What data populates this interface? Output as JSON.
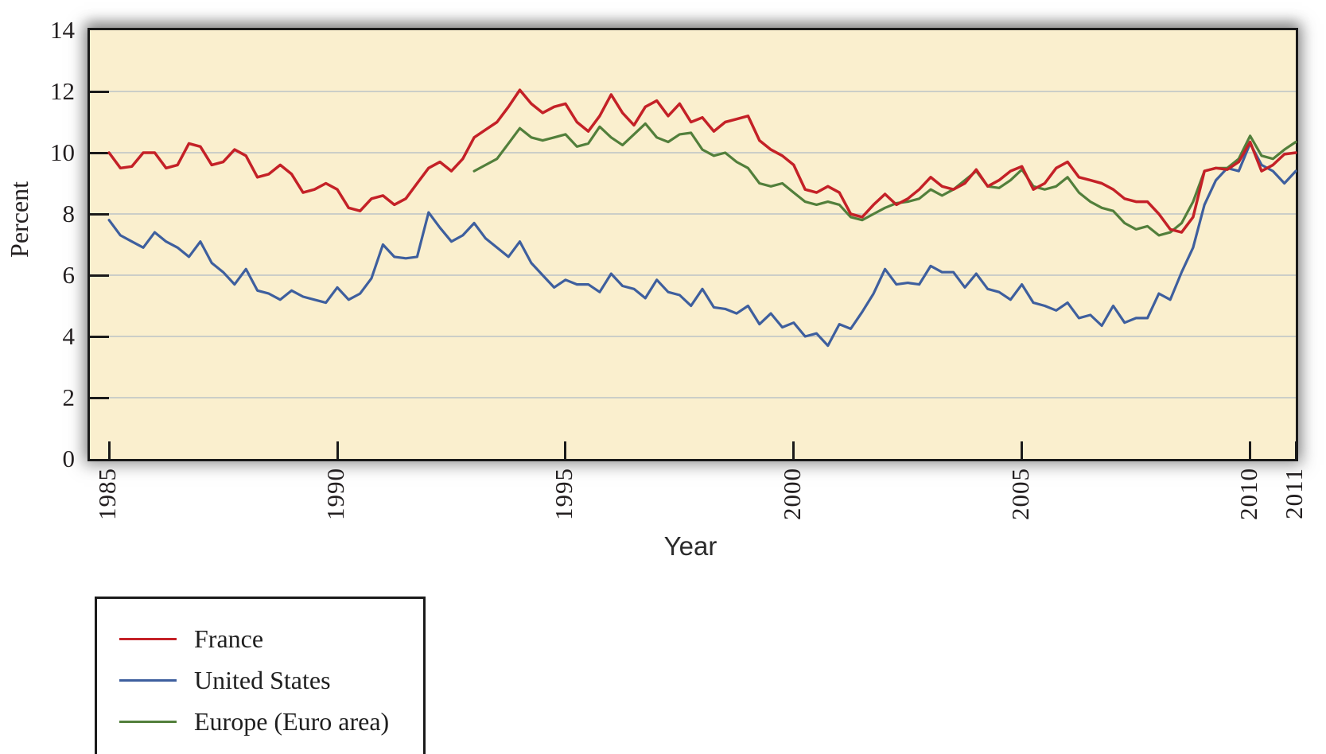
{
  "colors": {
    "plot_background": "#FAEFCE",
    "gridline": "#CBCEC8",
    "axis": "#1A1A1A",
    "text": "#231F20",
    "france": "#C42127",
    "united_states": "#3E5F9E",
    "euro_area": "#527F3B"
  },
  "chart_data": {
    "type": "line",
    "title": "",
    "ylabel": "Percent",
    "xlabel": "Year",
    "ylim": [
      0,
      14
    ],
    "xlim": [
      1984.58,
      2011.0
    ],
    "yticks": [
      0,
      2,
      4,
      6,
      8,
      10,
      12,
      14
    ],
    "xticks": [
      1985,
      1990,
      1995,
      2000,
      2005,
      2010,
      2011
    ],
    "grid": "horizontal",
    "legend_position": "bottom-left",
    "x_unit": "year (quarterly points)",
    "series": [
      {
        "name": "France",
        "color": "#C42127",
        "start": 1985.0,
        "step": 0.25,
        "values": [
          10.0,
          9.5,
          9.55,
          10.0,
          10.0,
          9.5,
          9.6,
          10.3,
          10.2,
          9.6,
          9.7,
          10.1,
          9.9,
          9.2,
          9.3,
          9.6,
          9.3,
          8.7,
          8.8,
          9.0,
          8.8,
          8.2,
          8.1,
          8.5,
          8.6,
          8.3,
          8.5,
          9.0,
          9.5,
          9.7,
          9.4,
          9.8,
          10.5,
          10.75,
          11.0,
          11.5,
          12.05,
          11.6,
          11.3,
          11.5,
          11.6,
          11.0,
          10.7,
          11.2,
          11.9,
          11.3,
          10.9,
          11.5,
          11.7,
          11.2,
          11.6,
          11.0,
          11.15,
          10.7,
          11.0,
          11.1,
          11.2,
          10.4,
          10.1,
          9.9,
          9.6,
          8.8,
          8.7,
          8.9,
          8.7,
          8.0,
          7.9,
          8.3,
          8.65,
          8.3,
          8.5,
          8.8,
          9.2,
          8.9,
          8.8,
          9.0,
          9.45,
          8.9,
          9.1,
          9.4,
          9.55,
          8.8,
          9.0,
          9.5,
          9.7,
          9.2,
          9.1,
          9.0,
          8.8,
          8.5,
          8.4,
          8.4,
          8.0,
          7.5,
          7.4,
          7.9,
          9.4,
          9.5,
          9.45,
          9.7,
          10.35,
          9.4,
          9.6,
          9.95,
          10.0
        ]
      },
      {
        "name": "United States",
        "color": "#3E5F9E",
        "start": 1985.0,
        "step": 0.25,
        "values": [
          7.8,
          7.3,
          7.1,
          6.9,
          7.4,
          7.1,
          6.9,
          6.6,
          7.1,
          6.4,
          6.1,
          5.7,
          6.2,
          5.5,
          5.4,
          5.2,
          5.5,
          5.3,
          5.2,
          5.1,
          5.6,
          5.2,
          5.4,
          5.9,
          7.0,
          6.6,
          6.55,
          6.6,
          8.05,
          7.55,
          7.1,
          7.3,
          7.7,
          7.2,
          6.9,
          6.6,
          7.1,
          6.4,
          6.0,
          5.6,
          5.85,
          5.7,
          5.7,
          5.45,
          6.05,
          5.65,
          5.55,
          5.25,
          5.85,
          5.45,
          5.35,
          5.0,
          5.55,
          4.95,
          4.9,
          4.75,
          5.0,
          4.4,
          4.75,
          4.3,
          4.45,
          4.0,
          4.1,
          3.7,
          4.4,
          4.25,
          4.8,
          5.4,
          6.2,
          5.7,
          5.75,
          5.7,
          6.3,
          6.1,
          6.1,
          5.6,
          6.05,
          5.55,
          5.45,
          5.2,
          5.7,
          5.1,
          5.0,
          4.85,
          5.1,
          4.6,
          4.7,
          4.35,
          5.0,
          4.45,
          4.6,
          4.6,
          5.4,
          5.2,
          6.1,
          6.9,
          8.3,
          9.1,
          9.5,
          9.4,
          10.3,
          9.6,
          9.4,
          9.0,
          9.4
        ]
      },
      {
        "name": "Europe (Euro area)",
        "color": "#527F3B",
        "start": 1993.0,
        "step": 0.25,
        "values": [
          9.4,
          9.6,
          9.8,
          10.3,
          10.8,
          10.5,
          10.4,
          10.5,
          10.6,
          10.2,
          10.3,
          10.85,
          10.5,
          10.25,
          10.6,
          10.95,
          10.5,
          10.35,
          10.6,
          10.65,
          10.1,
          9.9,
          10.0,
          9.7,
          9.5,
          9.0,
          8.9,
          9.0,
          8.7,
          8.4,
          8.3,
          8.4,
          8.3,
          7.9,
          7.8,
          8.0,
          8.2,
          8.35,
          8.4,
          8.5,
          8.8,
          8.6,
          8.8,
          9.1,
          9.4,
          8.9,
          8.85,
          9.1,
          9.45,
          8.9,
          8.8,
          8.9,
          9.2,
          8.7,
          8.4,
          8.2,
          8.1,
          7.7,
          7.5,
          7.6,
          7.3,
          7.4,
          7.7,
          8.4,
          9.4,
          9.5,
          9.5,
          9.8,
          10.55,
          9.9,
          9.8,
          10.1,
          10.35
        ]
      }
    ]
  },
  "legend": {
    "items": [
      {
        "label": "France"
      },
      {
        "label": "United States"
      },
      {
        "label": "Europe (Euro area)"
      }
    ]
  }
}
